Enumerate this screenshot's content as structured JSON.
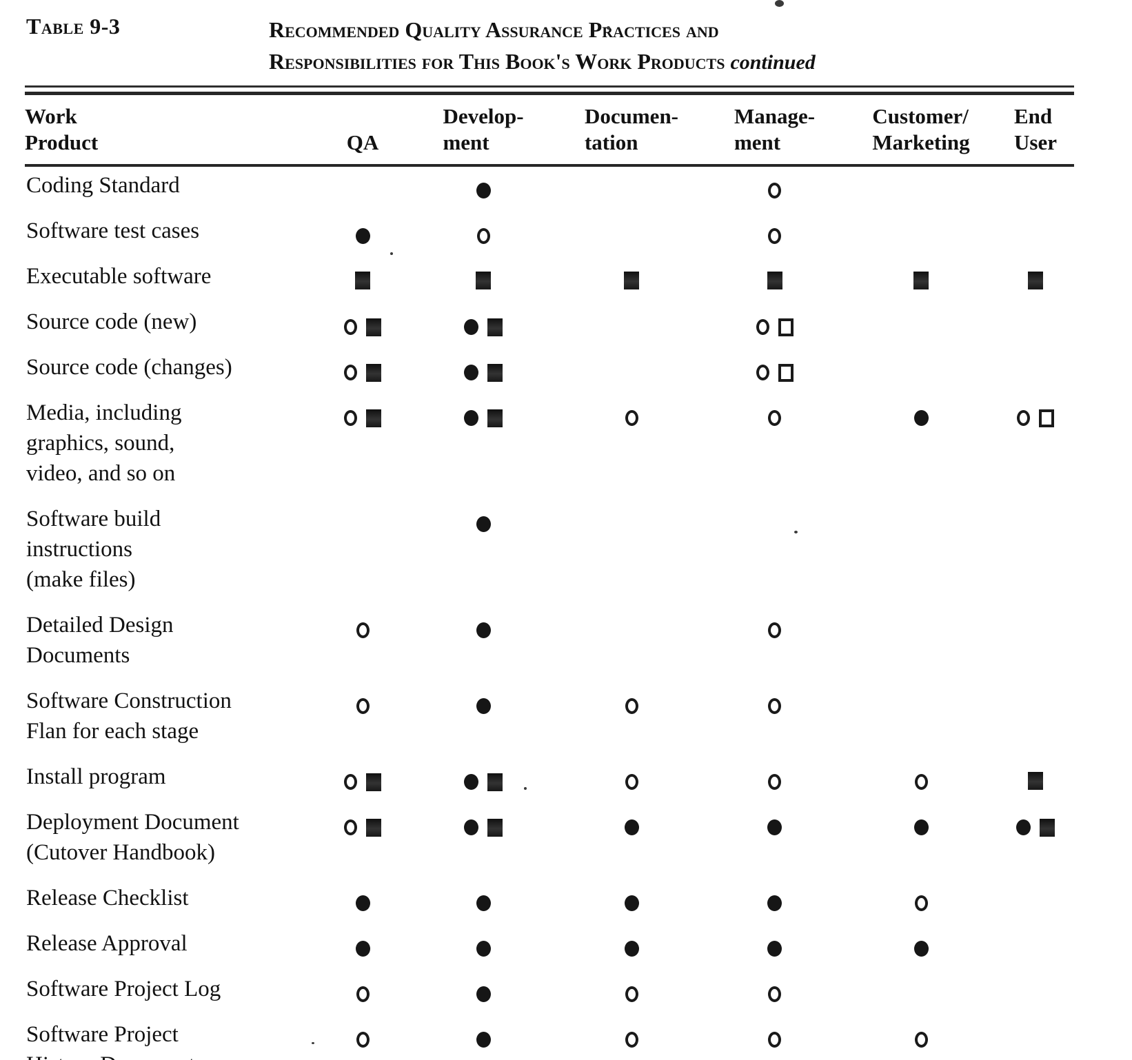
{
  "page": {
    "table_label": "Table 9-3",
    "title_line1": "Recommended Quality Assurance Practices and",
    "title_line2": "Responsibilities for This Book's Work Products",
    "title_continued": "continued"
  },
  "columns": [
    {
      "line1": "Work",
      "line2": "Product"
    },
    {
      "line1": "",
      "line2": "QA"
    },
    {
      "line1": "Develop-",
      "line2": "ment"
    },
    {
      "line1": "Documen-",
      "line2": "tation"
    },
    {
      "line1": "Manage-",
      "line2": "ment"
    },
    {
      "line1": "Customer/",
      "line2": "Marketing"
    },
    {
      "line1": "End",
      "line2": "User"
    }
  ],
  "symbol_legend": {
    "fc": "filled-circle",
    "oc": "open-circle",
    "fs": "filled-square",
    "os": "open-square"
  },
  "rows": [
    {
      "label": "Coding Standard",
      "cells": [
        [],
        [
          "fc"
        ],
        [],
        [
          "oc"
        ],
        [],
        []
      ]
    },
    {
      "label": "Software test cases",
      "cells": [
        [
          "fc"
        ],
        [
          "oc"
        ],
        [],
        [
          "oc"
        ],
        [],
        []
      ]
    },
    {
      "label": "Executable software",
      "cells": [
        [
          "fs"
        ],
        [
          "fs"
        ],
        [
          "fs"
        ],
        [
          "fs"
        ],
        [
          "fs"
        ],
        [
          "fs"
        ]
      ]
    },
    {
      "label": "Source code (new)",
      "cells": [
        [
          "oc",
          "fs"
        ],
        [
          "fc",
          "fs"
        ],
        [],
        [
          "oc",
          "os"
        ],
        [],
        []
      ]
    },
    {
      "label": "Source code (changes)",
      "cells": [
        [
          "oc",
          "fs"
        ],
        [
          "fc",
          "fs"
        ],
        [],
        [
          "oc",
          "os"
        ],
        [],
        []
      ]
    },
    {
      "label": "Media, including\ngraphics, sound,\nvideo, and so on",
      "cells": [
        [
          "oc",
          "fs"
        ],
        [
          "fc",
          "fs"
        ],
        [
          "oc"
        ],
        [
          "oc"
        ],
        [
          "fc"
        ],
        [
          "oc",
          "os"
        ]
      ]
    },
    {
      "label": "Software build\ninstructions\n(make files)",
      "cells": [
        [],
        [
          "fc"
        ],
        [],
        [],
        [],
        []
      ]
    },
    {
      "label": "Detailed Design\nDocuments",
      "cells": [
        [
          "oc"
        ],
        [
          "fc"
        ],
        [],
        [
          "oc"
        ],
        [],
        []
      ]
    },
    {
      "label": "Software Construction\nFlan for each stage",
      "cells": [
        [
          "oc"
        ],
        [
          "fc"
        ],
        [
          "oc"
        ],
        [
          "oc"
        ],
        [],
        []
      ]
    },
    {
      "label": "Install program",
      "cells": [
        [
          "oc",
          "fs"
        ],
        [
          "fc",
          "fs"
        ],
        [
          "oc"
        ],
        [
          "oc"
        ],
        [
          "oc"
        ],
        [
          "fs"
        ]
      ]
    },
    {
      "label": "Deployment Document\n(Cutover Handbook)",
      "cells": [
        [
          "oc",
          "fs"
        ],
        [
          "fc",
          "fs"
        ],
        [
          "fc"
        ],
        [
          "fc"
        ],
        [
          "fc"
        ],
        [
          "fc",
          "fs"
        ]
      ]
    },
    {
      "label": "Release Checklist",
      "cells": [
        [
          "fc"
        ],
        [
          "fc"
        ],
        [
          "fc"
        ],
        [
          "fc"
        ],
        [
          "oc"
        ],
        []
      ]
    },
    {
      "label": "Release Approval",
      "cells": [
        [
          "fc"
        ],
        [
          "fc"
        ],
        [
          "fc"
        ],
        [
          "fc"
        ],
        [
          "fc"
        ],
        []
      ]
    },
    {
      "label": "Software Project Log",
      "cells": [
        [
          "oc"
        ],
        [
          "fc"
        ],
        [
          "oc"
        ],
        [
          "oc"
        ],
        [],
        []
      ]
    },
    {
      "label": "Software Project\nHistory Document",
      "cells": [
        [
          "oc"
        ],
        [
          "fc"
        ],
        [
          "oc"
        ],
        [
          "oc"
        ],
        [
          "oc"
        ],
        []
      ]
    }
  ]
}
